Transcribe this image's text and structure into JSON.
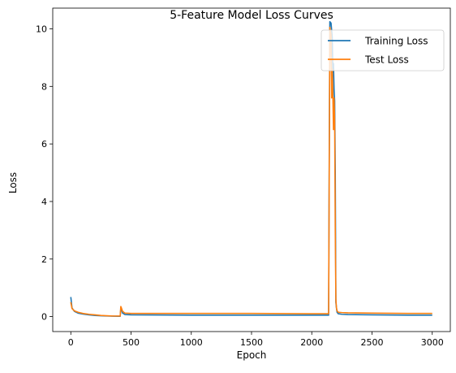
{
  "chart_data": {
    "type": "line",
    "title": "5-Feature Model Loss Curves",
    "xlabel": "Epoch",
    "ylabel": "Loss",
    "xlim": [
      -150,
      3150
    ],
    "ylim": [
      -0.52,
      10.72
    ],
    "xticks": [
      0,
      500,
      1000,
      1500,
      2000,
      2500,
      3000
    ],
    "yticks": [
      0,
      2,
      4,
      6,
      8,
      10
    ],
    "grid": false,
    "legend": "top-right",
    "series": [
      {
        "name": "Training Loss",
        "color": "#1f77b4",
        "x": [
          0,
          10,
          30,
          60,
          100,
          150,
          200,
          250,
          300,
          350,
          400,
          410,
          415,
          420,
          430,
          450,
          500,
          1000,
          1500,
          2000,
          2100,
          2140,
          2145,
          2150,
          2160,
          2170,
          2175,
          2180,
          2185,
          2190,
          2195,
          2200,
          2205,
          2210,
          2220,
          2250,
          2300,
          2500,
          2800,
          3000
        ],
        "y": [
          0.68,
          0.3,
          0.18,
          0.12,
          0.09,
          0.06,
          0.04,
          0.03,
          0.02,
          0.015,
          0.01,
          0.01,
          0.28,
          0.25,
          0.12,
          0.07,
          0.06,
          0.05,
          0.05,
          0.05,
          0.05,
          0.05,
          5.5,
          10.25,
          10.2,
          9.7,
          8.5,
          8.8,
          7.9,
          7.5,
          5.0,
          0.5,
          0.3,
          0.15,
          0.1,
          0.08,
          0.07,
          0.06,
          0.05,
          0.05
        ]
      },
      {
        "name": "Test Loss",
        "color": "#ff7f0e",
        "x": [
          0,
          10,
          30,
          60,
          100,
          150,
          200,
          250,
          300,
          350,
          400,
          410,
          415,
          420,
          430,
          450,
          500,
          1000,
          1500,
          2000,
          2100,
          2140,
          2145,
          2150,
          2160,
          2165,
          2170,
          2175,
          2180,
          2185,
          2190,
          2195,
          2200,
          2205,
          2210,
          2220,
          2250,
          2300,
          2500,
          2800,
          3000
        ],
        "y": [
          0.5,
          0.28,
          0.2,
          0.15,
          0.11,
          0.08,
          0.06,
          0.04,
          0.03,
          0.02,
          0.02,
          0.02,
          0.35,
          0.3,
          0.18,
          0.12,
          0.11,
          0.11,
          0.11,
          0.1,
          0.1,
          0.1,
          5.0,
          10.05,
          9.8,
          7.6,
          8.6,
          7.7,
          6.5,
          7.6,
          6.8,
          3.0,
          0.6,
          0.3,
          0.2,
          0.15,
          0.14,
          0.13,
          0.12,
          0.11,
          0.11
        ]
      }
    ]
  }
}
